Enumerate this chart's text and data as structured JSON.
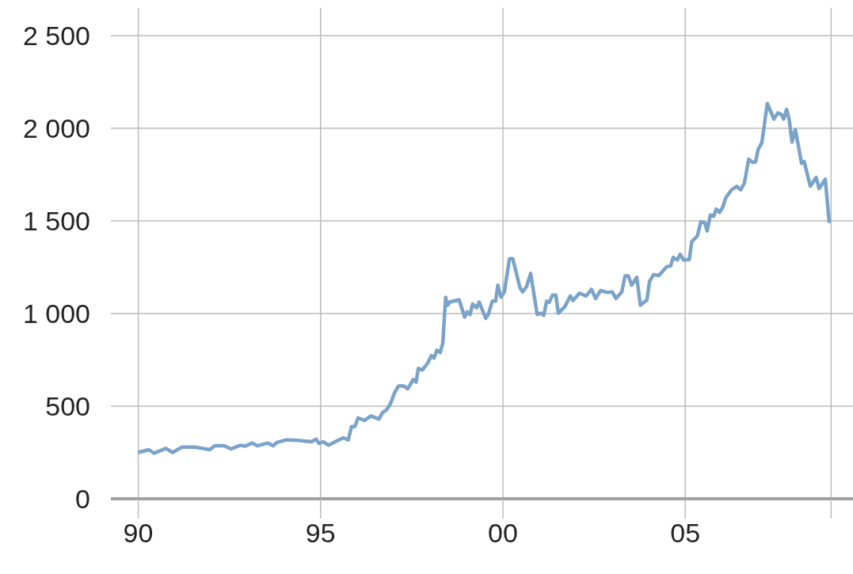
{
  "chart_data": {
    "type": "line",
    "x": [
      1990.0,
      1990.29,
      1990.43,
      1990.76,
      1990.94,
      1991.2,
      1991.56,
      1991.96,
      1992.1,
      1992.36,
      1992.54,
      1992.8,
      1992.93,
      1993.12,
      1993.26,
      1993.55,
      1993.7,
      1993.8,
      1994.06,
      1994.38,
      1994.53,
      1994.75,
      1994.88,
      1994.96,
      1995.07,
      1995.22,
      1995.4,
      1995.62,
      1995.76,
      1995.85,
      1995.94,
      1996.03,
      1996.2,
      1996.38,
      1996.6,
      1996.7,
      1996.81,
      1996.92,
      1997.03,
      1997.14,
      1997.28,
      1997.39,
      1997.46,
      1997.54,
      1997.62,
      1997.68,
      1997.79,
      1997.93,
      1998.04,
      1998.11,
      1998.19,
      1998.28,
      1998.35,
      1998.43,
      1998.48,
      1998.55,
      1998.8,
      1998.95,
      1999.02,
      1999.1,
      1999.17,
      1999.28,
      1999.35,
      1999.53,
      1999.6,
      1999.71,
      1999.8,
      1999.86,
      1999.95,
      2000.04,
      2000.18,
      2000.27,
      2000.47,
      2000.54,
      2000.65,
      2000.76,
      2000.94,
      2001.05,
      2001.12,
      2001.2,
      2001.27,
      2001.36,
      2001.45,
      2001.52,
      2001.7,
      2001.85,
      2001.92,
      2002.1,
      2002.28,
      2002.43,
      2002.54,
      2002.68,
      2002.86,
      2003.0,
      2003.1,
      2003.26,
      2003.35,
      2003.44,
      2003.53,
      2003.67,
      2003.77,
      2003.95,
      2004.02,
      2004.13,
      2004.28,
      2004.49,
      2004.6,
      2004.67,
      2004.78,
      2004.86,
      2004.96,
      2005.11,
      2005.18,
      2005.33,
      2005.43,
      2005.54,
      2005.6,
      2005.69,
      2005.78,
      2005.85,
      2005.94,
      2006.03,
      2006.11,
      2006.27,
      2006.41,
      2006.52,
      2006.62,
      2006.74,
      2006.85,
      2006.93,
      2007.0,
      2007.1,
      2007.25,
      2007.43,
      2007.54,
      2007.63,
      2007.7,
      2007.78,
      2007.85,
      2007.93,
      2008.02,
      2008.19,
      2008.26,
      2008.43,
      2008.59,
      2008.67,
      2008.84,
      2008.95
    ],
    "series": [
      {
        "color": "#7ba3c8",
        "values": [
          250,
          265,
          246,
          272,
          250,
          279,
          279,
          265,
          286,
          286,
          269,
          289,
          284,
          301,
          286,
          301,
          286,
          304,
          318,
          315,
          312,
          308,
          322,
          298,
          308,
          289,
          308,
          329,
          318,
          390,
          390,
          437,
          423,
          447,
          430,
          465,
          480,
          515,
          573,
          609,
          609,
          594,
          616,
          644,
          630,
          704,
          695,
          730,
          773,
          759,
          802,
          790,
          838,
          1088,
          1045,
          1063,
          1074,
          981,
          1009,
          995,
          1052,
          1031,
          1062,
          974,
          995,
          1067,
          1067,
          1153,
          1088,
          1117,
          1296,
          1296,
          1138,
          1117,
          1146,
          1217,
          995,
          1002,
          990,
          1067,
          1060,
          1100,
          1100,
          1002,
          1038,
          1095,
          1070,
          1110,
          1095,
          1131,
          1081,
          1124,
          1114,
          1117,
          1081,
          1117,
          1203,
          1203,
          1153,
          1196,
          1045,
          1074,
          1174,
          1210,
          1205,
          1253,
          1257,
          1303,
          1289,
          1320,
          1289,
          1292,
          1389,
          1418,
          1496,
          1489,
          1446,
          1532,
          1525,
          1564,
          1546,
          1575,
          1625,
          1668,
          1687,
          1668,
          1704,
          1833,
          1816,
          1819,
          1887,
          1922,
          2134,
          2050,
          2083,
          2076,
          2050,
          2102,
          2047,
          1926,
          1993,
          1811,
          1821,
          1687,
          1735,
          1675,
          1725,
          1489
        ]
      }
    ],
    "xlim": [
      1989.25,
      2009.6
    ],
    "xticks": [
      {
        "value": 1990,
        "label": "90"
      },
      {
        "value": 1995,
        "label": "95"
      },
      {
        "value": 2000,
        "label": "00"
      },
      {
        "value": 2005,
        "label": "05"
      },
      {
        "value": 2009,
        "label": null
      }
    ],
    "ylim": [
      0,
      2650
    ],
    "yticks": [
      {
        "value": 0,
        "label": "0"
      },
      {
        "value": 500,
        "label": "500"
      },
      {
        "value": 1000,
        "label": "1 000"
      },
      {
        "value": 1500,
        "label": "1 500"
      },
      {
        "value": 2000,
        "label": "2 000"
      },
      {
        "value": 2500,
        "label": "2 500"
      }
    ],
    "grid": true
  }
}
